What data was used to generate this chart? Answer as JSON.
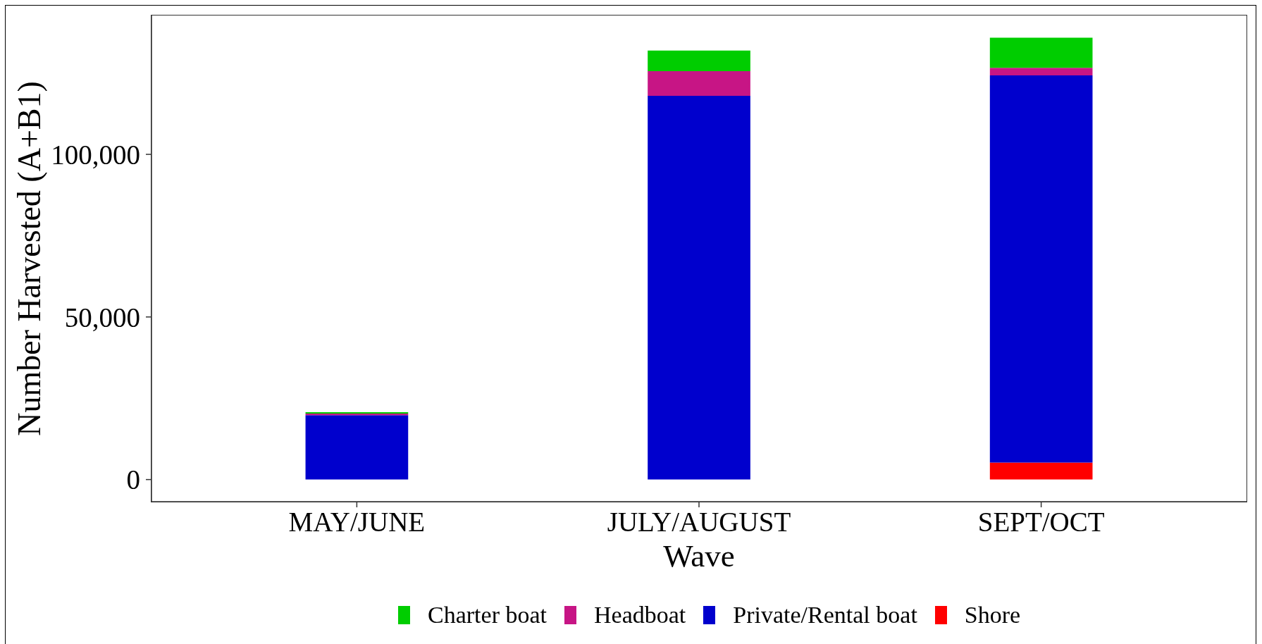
{
  "chart_data": {
    "type": "bar",
    "xlabel": "Wave",
    "ylabel": "Number Harvested (A+B1)",
    "categories": [
      "MAY/JUNE",
      "JULY/AUGUST",
      "SEPT/OCT"
    ],
    "stacked": true,
    "series": [
      {
        "name": "Shore",
        "color": "#ff0000",
        "values": [
          0,
          0,
          5200
        ]
      },
      {
        "name": "Private/Rental boat",
        "color": "#0000cd",
        "values": [
          19800,
          118000,
          119100
        ]
      },
      {
        "name": "Headboat",
        "color": "#c71585",
        "values": [
          500,
          7600,
          2300
        ]
      },
      {
        "name": "Charter boat",
        "color": "#00cd00",
        "values": [
          400,
          6300,
          9300
        ]
      }
    ],
    "ylim": [
      -6800,
      142700
    ],
    "yticks": [
      0,
      {
        "value": 50000,
        "label": "50,000"
      },
      {
        "value": 100000,
        "label": "100,000"
      }
    ],
    "grid": false,
    "legend": "bottom"
  }
}
